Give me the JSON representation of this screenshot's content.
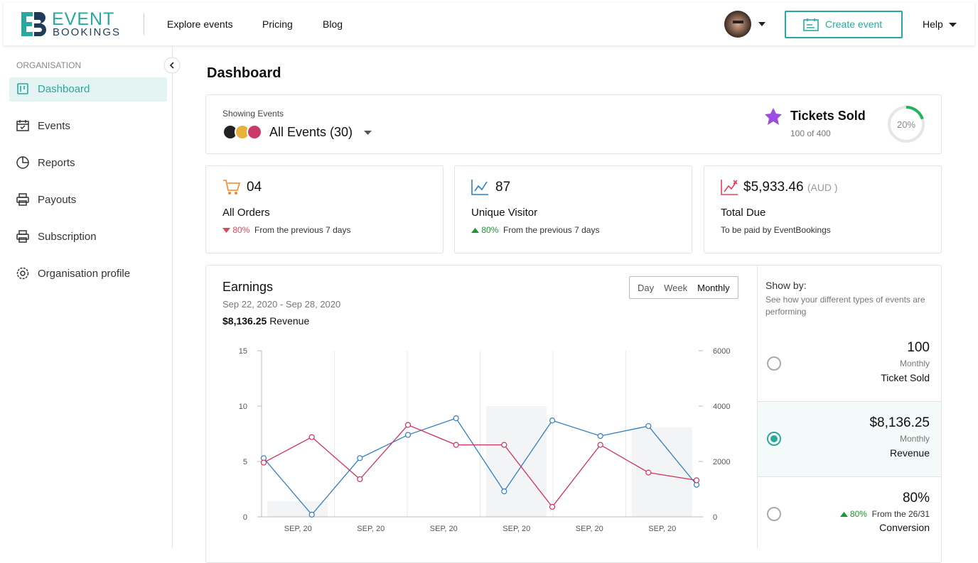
{
  "header": {
    "logo_top": "EVENT",
    "logo_bottom": "BOOKINGS",
    "nav": [
      "Explore events",
      "Pricing",
      "Blog"
    ],
    "create": "Create event",
    "help": "Help"
  },
  "sidebar": {
    "section": "ORGANISATION",
    "items": [
      "Dashboard",
      "Events",
      "Reports",
      "Payouts",
      "Subscription",
      "Organisation profile"
    ],
    "active": 0
  },
  "page_title": "Dashboard",
  "filter": {
    "label": "Showing Events",
    "value": "All Events (30)"
  },
  "tickets": {
    "title": "Tickets Sold",
    "sub": "100 of 400",
    "percent": 20,
    "percent_label": "20%"
  },
  "stats": [
    {
      "value": "04",
      "label": "All Orders",
      "change": "80%",
      "note": "From the previous 7 days",
      "trend": "down"
    },
    {
      "value": "87",
      "label": "Unique Visitor",
      "change": "80%",
      "note": "From the previous 7 days",
      "trend": "up"
    },
    {
      "value": "$5,933.46",
      "unit": "(AUD )",
      "label": "Total Due",
      "note": "To be paid by EventBookings"
    }
  ],
  "earnings": {
    "title": "Earnings",
    "range": "Sep 22, 2020 - Sep 28, 2020",
    "revenue": "$8,136.25",
    "revenue_label": "Revenue",
    "tabs": [
      "Day",
      "Week",
      "Monthly"
    ],
    "active_tab": 2
  },
  "chart_data": {
    "type": "combo",
    "categories": [
      "SEP, 20",
      "SEP, 20",
      "SEP, 20",
      "SEP, 20",
      "SEP, 20",
      "SEP, 20"
    ],
    "ylim": [
      0,
      15
    ],
    "yticks": [
      0,
      5,
      10,
      15
    ],
    "y2lim": [
      0,
      6000
    ],
    "y2ticks": [
      0,
      2000,
      4000,
      6000
    ],
    "grid": true,
    "series": [
      {
        "type": "bar",
        "color": "#f3f4f6",
        "values": [
          1.4,
          0,
          0,
          10,
          0,
          8.1
        ]
      },
      {
        "type": "line",
        "color": "#2f7fc1",
        "x": [
          0,
          1,
          2,
          3,
          4,
          5,
          6,
          7,
          8,
          9
        ],
        "values": [
          5.3,
          0.2,
          5.3,
          7.4,
          8.9,
          2.3,
          8.7,
          7.3,
          8.2,
          2.9
        ]
      },
      {
        "type": "line",
        "color": "#d0335a",
        "x": [
          0,
          1,
          2,
          3,
          4,
          5,
          6,
          7,
          8,
          9
        ],
        "values": [
          4.9,
          7.2,
          3.4,
          8.3,
          6.5,
          6.5,
          0.9,
          6.5,
          4.0,
          3.3
        ]
      }
    ]
  },
  "show_by": {
    "title": "Show by:",
    "desc": "See how your different types of events are performing",
    "options": [
      {
        "value": "100",
        "period": "Monthly",
        "label": "Ticket Sold",
        "selected": false
      },
      {
        "value": "$8,136.25",
        "period": "Monthly",
        "label": "Revenue",
        "selected": true
      },
      {
        "value": "80%",
        "change": "80%",
        "note": "From the 26/31",
        "label": "Conversion",
        "selected": false
      }
    ]
  }
}
